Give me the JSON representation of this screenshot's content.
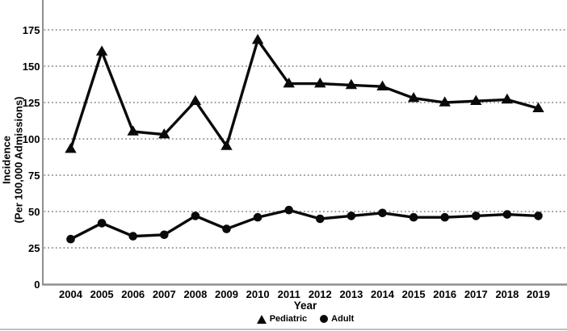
{
  "chart_data": {
    "type": "line",
    "title": "",
    "x": [
      2004,
      2005,
      2006,
      2007,
      2008,
      2009,
      2010,
      2011,
      2012,
      2013,
      2014,
      2015,
      2016,
      2017,
      2018,
      2019
    ],
    "series": [
      {
        "name": "Pediatric",
        "marker": "triangle",
        "color": "#0a0a0a",
        "values": [
          93,
          160,
          105,
          103,
          126,
          95,
          168,
          138,
          138,
          137,
          136,
          128,
          125,
          126,
          127,
          121
        ]
      },
      {
        "name": "Adult",
        "marker": "circle",
        "color": "#0a0a0a",
        "values": [
          31,
          42,
          33,
          34,
          47,
          38,
          46,
          51,
          45,
          47,
          49,
          46,
          46,
          47,
          48,
          47
        ]
      }
    ],
    "xlabel": "Year",
    "ylabel": "Incidence (Per 100,000 Admissions)",
    "ylabel_line1": "Incidence",
    "ylabel_line2": "(Per 100,000 Admissions)",
    "yticks": [
      0,
      25,
      50,
      75,
      100,
      125,
      150,
      175
    ],
    "ylim": [
      0,
      195
    ],
    "grid": "horizontal-dotted",
    "legend_position": "bottom"
  },
  "colors": {
    "line": "#0a0a0a",
    "axis": "#8f8f8f",
    "grid": "#8d8d8d",
    "text": "#000000",
    "background": "#ffffff"
  }
}
